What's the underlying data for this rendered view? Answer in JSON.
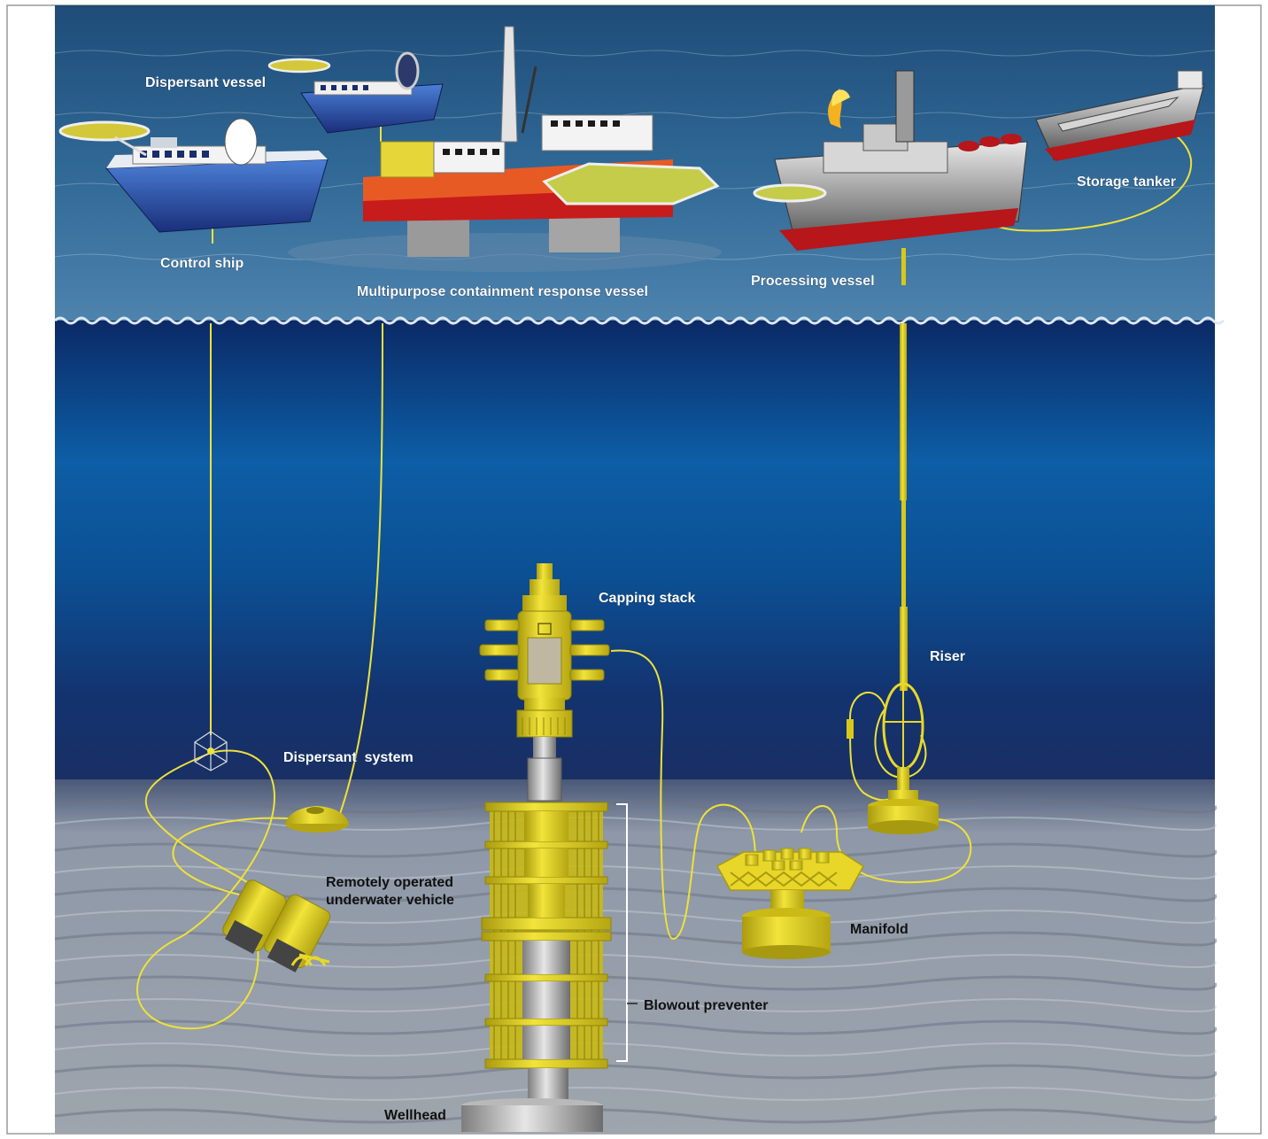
{
  "labels": {
    "dispersant_vessel": "Dispersant vessel",
    "control_ship": "Control ship",
    "multipurpose_vessel": "Multipurpose containment response vessel",
    "processing_vessel": "Processing vessel",
    "storage_tanker": "Storage tanker",
    "capping_stack": "Capping stack",
    "riser": "Riser",
    "dispersant_system": "Dispersant  system",
    "rov_line1": "Remotely operated",
    "rov_line2": "underwater vehicle",
    "manifold": "Manifold",
    "blowout_preventer": "Blowout preventer",
    "wellhead": "Wellhead"
  },
  "colors": {
    "sea_surface": "#2a5a86",
    "deep_water": "#0a2a5e",
    "seabed": "#8d97a5",
    "equipment_yellow": "#e3d11c",
    "cable_yellow": "#f0e23a"
  }
}
